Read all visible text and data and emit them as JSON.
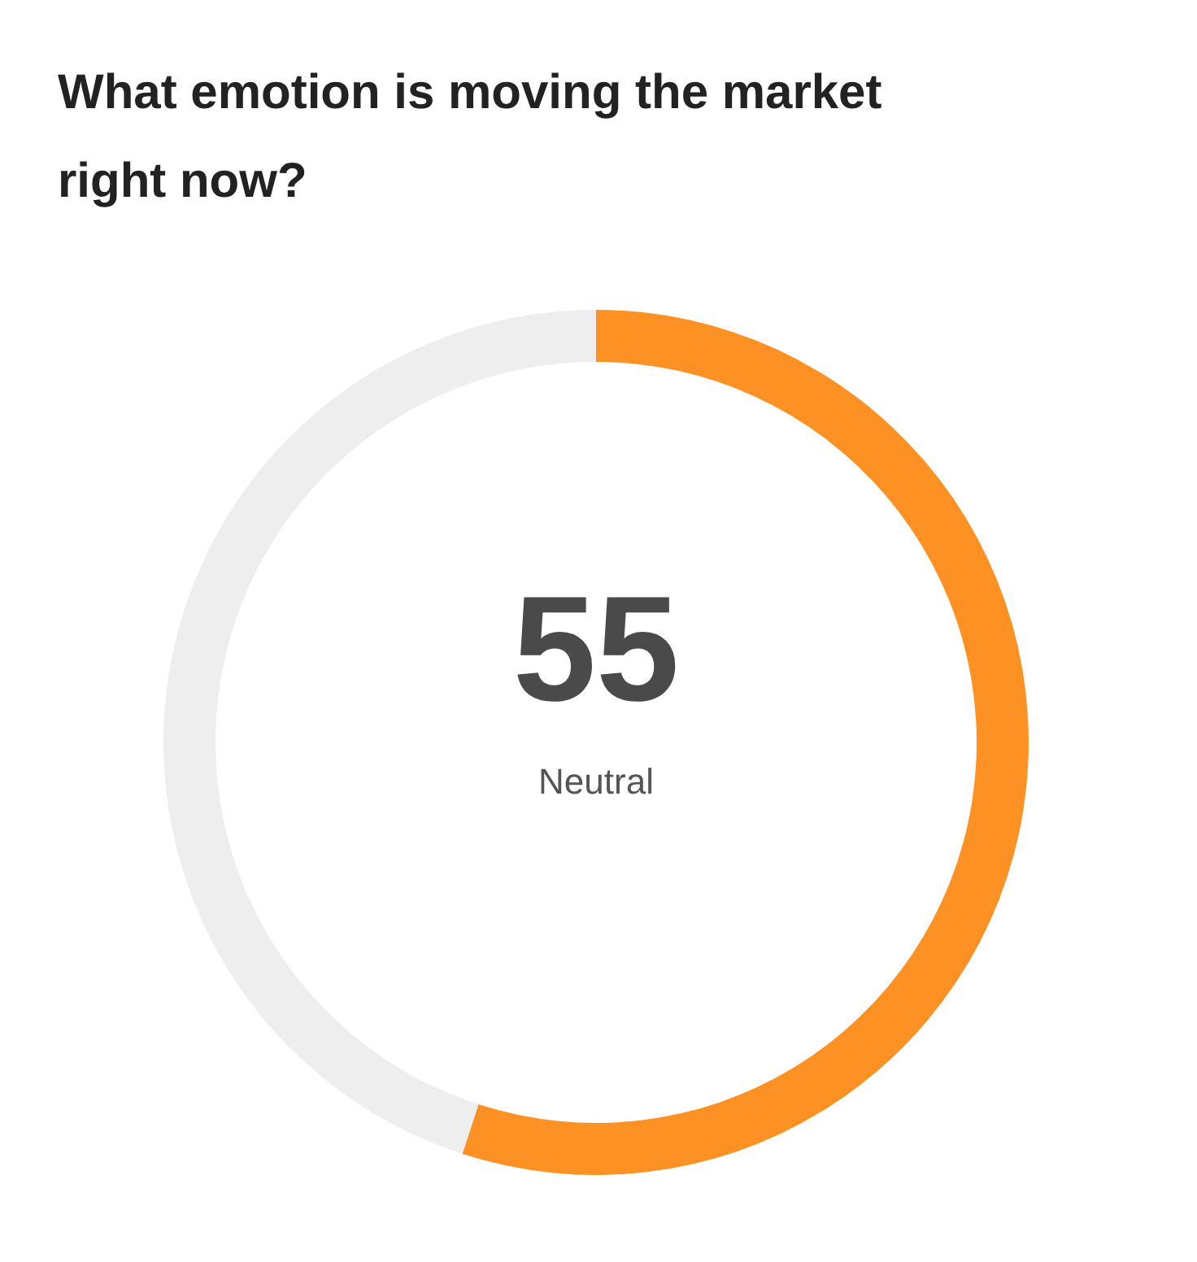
{
  "chart_data": {
    "type": "donut",
    "title": "What emotion is moving the market right now?",
    "categories": [
      "Neutral",
      null
    ],
    "values": [
      55,
      45
    ],
    "colors": [
      "#fe9124",
      "#eeeeee"
    ],
    "value_labels": [
      "55",
      null
    ]
  }
}
